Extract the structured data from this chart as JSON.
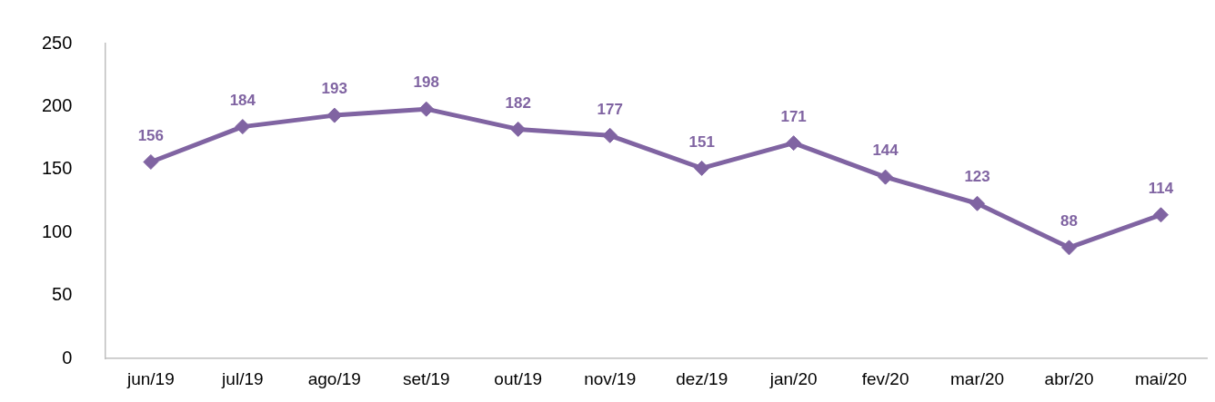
{
  "chart_data": {
    "type": "line",
    "categories": [
      "jun/19",
      "jul/19",
      "ago/19",
      "set/19",
      "out/19",
      "nov/19",
      "dez/19",
      "jan/20",
      "fev/20",
      "mar/20",
      "abr/20",
      "mai/20"
    ],
    "series": [
      {
        "color": "#8064a2",
        "values": [
          156,
          184,
          193,
          198,
          182,
          177,
          151,
          171,
          144,
          123,
          88,
          114
        ]
      }
    ],
    "ylim": [
      0,
      250
    ],
    "yticks": [
      0,
      50,
      100,
      150,
      200,
      250
    ],
    "grid": false,
    "legend": false,
    "marker": "diamond",
    "line_style": "solid",
    "data_labels": true
  }
}
